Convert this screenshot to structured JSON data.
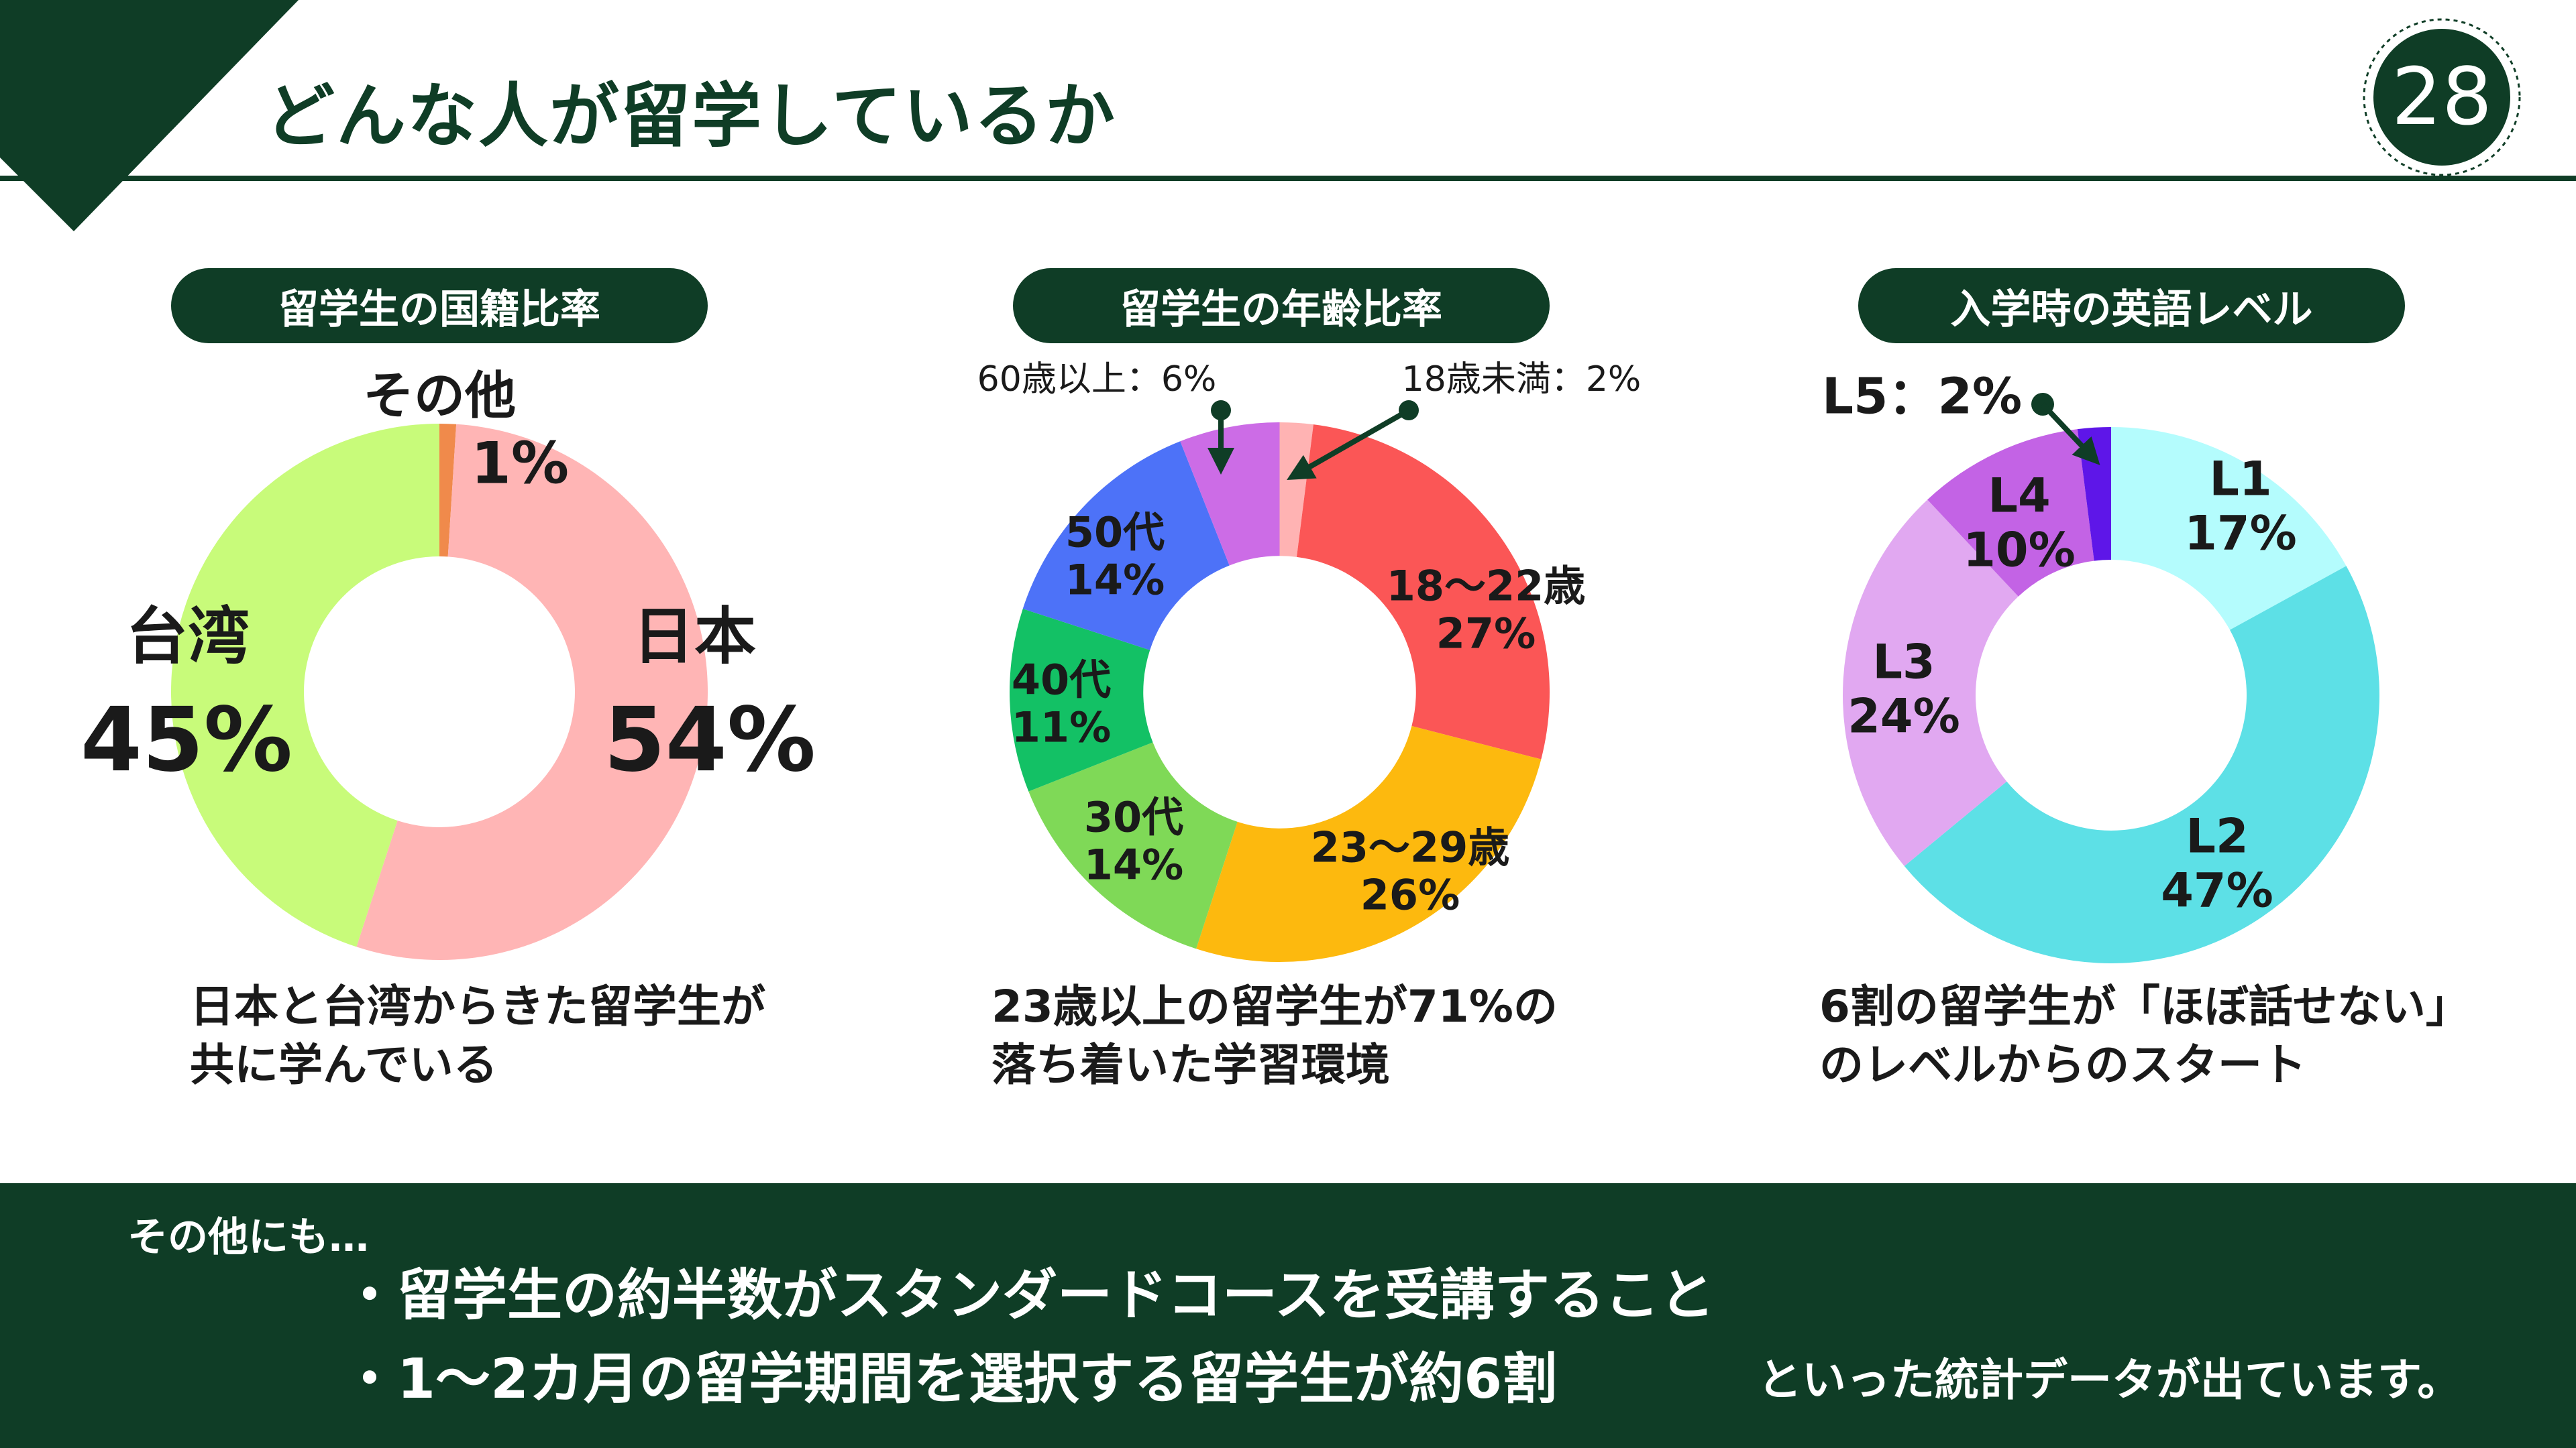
{
  "page": {
    "title": "どんな人が留学しているか",
    "page_number": "28",
    "colors": {
      "brand": "#0f3d26",
      "background": "#ffffff"
    }
  },
  "charts": [
    {
      "pill": "留学生の国籍比率",
      "caption": [
        "日本と台湾からきた留学生が",
        "共に学んでいる"
      ],
      "segment_labels": [
        {
          "name": "日本",
          "value": "54%"
        },
        {
          "name": "台湾",
          "value": "45%"
        },
        {
          "name": "その他",
          "value": "1%"
        }
      ]
    },
    {
      "pill": "留学生の年齢比率",
      "caption": [
        "23歳以上の留学生が71%の",
        "落ち着いた学習環境"
      ],
      "segment_labels": [
        {
          "name": "18〜22歳",
          "value": "27%"
        },
        {
          "name": "23〜29歳",
          "value": "26%"
        },
        {
          "name": "30代",
          "value": "14%"
        },
        {
          "name": "40代",
          "value": "11%"
        },
        {
          "name": "50代",
          "value": "14%"
        },
        {
          "callout": "60歳以上：6%"
        },
        {
          "callout": "18歳未満：2%"
        }
      ]
    },
    {
      "pill": "入学時の英語レベル",
      "caption": [
        "6割の留学生が「ほぼ話せない」",
        "のレベルからのスタート"
      ],
      "segment_labels": [
        {
          "name": "L1",
          "value": "17%"
        },
        {
          "name": "L2",
          "value": "47%"
        },
        {
          "name": "L3",
          "value": "24%"
        },
        {
          "name": "L4",
          "value": "10%"
        },
        {
          "callout": "L5：2%"
        }
      ]
    }
  ],
  "chart_data": [
    {
      "type": "pie",
      "title": "留学生の国籍比率",
      "categories": [
        "その他",
        "日本",
        "台湾"
      ],
      "values": [
        1,
        54,
        45
      ],
      "colors": [
        "#f08a4b",
        "#ffb5b5",
        "#c8fb7a"
      ]
    },
    {
      "type": "pie",
      "title": "留学生の年齢比率",
      "categories": [
        "18歳未満",
        "18〜22歳",
        "23〜29歳",
        "30代",
        "40代",
        "50代",
        "60歳以上"
      ],
      "values": [
        2,
        27,
        26,
        14,
        11,
        14,
        6
      ],
      "colors": [
        "#ffb3b3",
        "#fb5656",
        "#fdb90e",
        "#7fd957",
        "#13c165",
        "#4d72f8",
        "#cc6ce6"
      ]
    },
    {
      "type": "pie",
      "title": "入学時の英語レベル",
      "categories": [
        "L1",
        "L2",
        "L3",
        "L4",
        "L5"
      ],
      "values": [
        17,
        47,
        24,
        10,
        2
      ],
      "colors": [
        "#b4fcfd",
        "#5de0e6",
        "#e1a8f1",
        "#c363e5",
        "#5e16e8"
      ]
    }
  ],
  "footer": {
    "lead": "その他にも…",
    "bullets": [
      "・留学生の約半数がスタンダードコースを受講すること",
      "・1〜2カ月の留学期間を選択する留学生が約6割"
    ],
    "tail": "といった統計データが出ています。"
  }
}
